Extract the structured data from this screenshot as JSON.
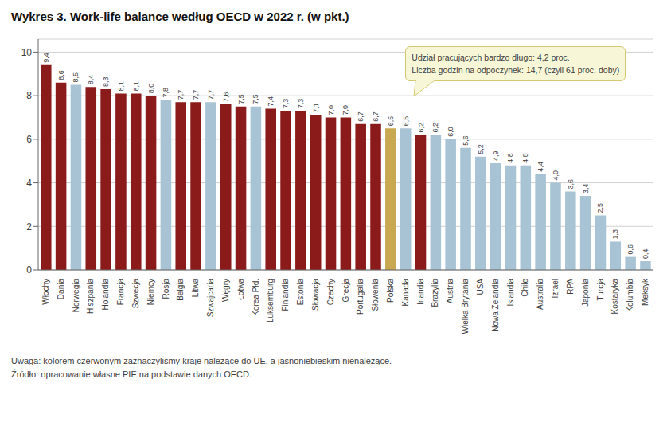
{
  "chart_data": {
    "type": "bar",
    "title": "Wykres 3. Work-life balance według OECD w 2022 r. (w pkt.)",
    "categories": [
      "Włochy",
      "Dania",
      "Norwegia",
      "Hiszpania",
      "Holandia",
      "Francja",
      "Szwecja",
      "Niemcy",
      "Rosja",
      "Belgia",
      "Litwa",
      "Szwajcaria",
      "Węgry",
      "Łotwa",
      "Korea Płd.",
      "Luksemburg",
      "Finlandia",
      "Estonia",
      "Słowacja",
      "Czechy",
      "Grecja",
      "Portugalia",
      "Słowenia",
      "Polska",
      "Kanada",
      "Irlandia",
      "Brazylia",
      "Austria",
      "Wielka Brytania",
      "USA",
      "Nowa Zelandia",
      "Islandia",
      "Chile",
      "Australia",
      "Izrael",
      "RPA",
      "Japonia",
      "Turcja",
      "Kostaryka",
      "Kolumbia",
      "Meksyk"
    ],
    "values": [
      9.4,
      8.6,
      8.5,
      8.4,
      8.3,
      8.1,
      8.1,
      8.0,
      7.8,
      7.7,
      7.7,
      7.7,
      7.6,
      7.5,
      7.5,
      7.4,
      7.3,
      7.3,
      7.1,
      7.0,
      7.0,
      6.7,
      6.7,
      6.5,
      6.5,
      6.2,
      6.2,
      6.0,
      5.6,
      5.2,
      4.9,
      4.8,
      4.8,
      4.4,
      4.0,
      3.6,
      3.4,
      2.5,
      1.3,
      0.6,
      0.4
    ],
    "value_labels": [
      "9,4",
      "8,6",
      "8,5",
      "8,4",
      "8,3",
      "8,1",
      "8,1",
      "8,0",
      "7,8",
      "7,7",
      "7,7",
      "7,7",
      "7,6",
      "7,5",
      "7,5",
      "7,4",
      "7,3",
      "7,3",
      "7,1",
      "7,0",
      "7,0",
      "6,7",
      "6,7",
      "6,5",
      "6,5",
      "6,2",
      "6,2",
      "6,0",
      "5,6",
      "5,2",
      "4,9",
      "4,8",
      "4,8",
      "4,4",
      "4,0",
      "3,6",
      "3,4",
      "2,5",
      "1,3",
      "0,6",
      "0,4"
    ],
    "colors": [
      "#8b1a1a",
      "#8b1a1a",
      "#a8c4d4",
      "#8b1a1a",
      "#8b1a1a",
      "#8b1a1a",
      "#8b1a1a",
      "#8b1a1a",
      "#a8c4d4",
      "#8b1a1a",
      "#8b1a1a",
      "#a8c4d4",
      "#8b1a1a",
      "#8b1a1a",
      "#a8c4d4",
      "#8b1a1a",
      "#8b1a1a",
      "#8b1a1a",
      "#8b1a1a",
      "#8b1a1a",
      "#8b1a1a",
      "#8b1a1a",
      "#8b1a1a",
      "#c8a850",
      "#a8c4d4",
      "#8b1a1a",
      "#a8c4d4",
      "#a8c4d4",
      "#a8c4d4",
      "#a8c4d4",
      "#a8c4d4",
      "#a8c4d4",
      "#a8c4d4",
      "#a8c4d4",
      "#a8c4d4",
      "#a8c4d4",
      "#a8c4d4",
      "#a8c4d4",
      "#a8c4d4",
      "#a8c4d4",
      "#a8c4d4"
    ],
    "ylim": [
      0,
      10.6
    ],
    "yticks": [
      0,
      2,
      4,
      6,
      8,
      10
    ],
    "grid": true,
    "data_labels": true,
    "annotations": [
      "Udział pracujących bardzo długo: 4,2 proc.",
      "Liczba godzin na odpoczynek: 14,7 (czyli 61 proc. doby)",
      "Uwaga: kolorem czerwonym zaznaczyliśmy kraje należące do UE, a jasnoniebieskim nienależące.",
      "Źródło: opracowanie własne PIE na podstawie danych OECD."
    ]
  }
}
